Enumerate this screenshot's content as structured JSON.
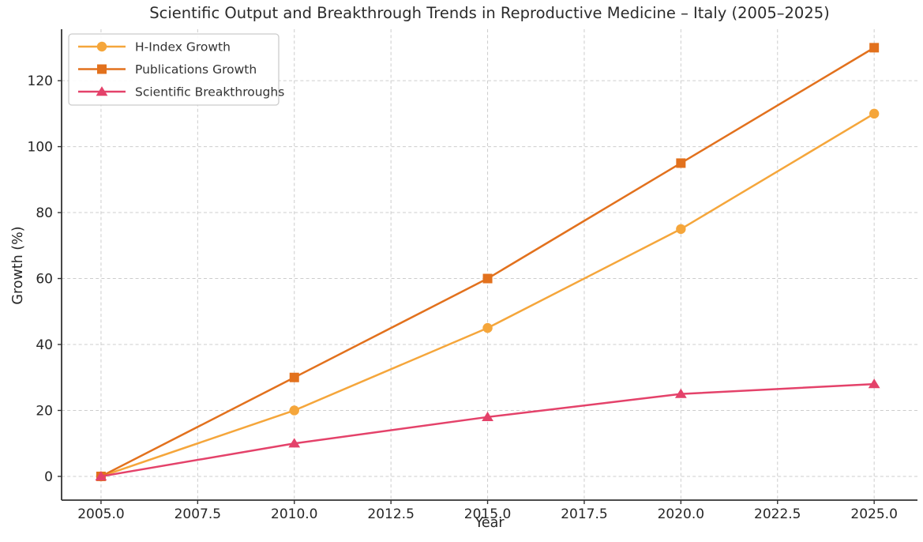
{
  "chart_data": {
    "type": "line",
    "title": "Scientific Output and Breakthrough Trends in Reproductive Medicine – Italy (2005–2025)",
    "xlabel": "Year",
    "ylabel": "Growth (%)",
    "x": [
      2005,
      2010,
      2015,
      2020,
      2025
    ],
    "series": [
      {
        "name": "H-Index Growth",
        "values": [
          0,
          20,
          45,
          75,
          110
        ],
        "color": "#F5A63B",
        "marker": "circle"
      },
      {
        "name": "Publications Growth",
        "values": [
          0,
          30,
          60,
          95,
          130
        ],
        "color": "#E2711D",
        "marker": "square"
      },
      {
        "name": "Scientific Breakthroughs",
        "values": [
          0,
          10,
          18,
          25,
          28
        ],
        "color": "#E4426A",
        "marker": "triangle"
      }
    ],
    "xticks": [
      2005.0,
      2007.5,
      2010.0,
      2012.5,
      2015.0,
      2017.5,
      2020.0,
      2022.5,
      2025.0
    ],
    "xtick_labels": [
      "2005.0",
      "2007.5",
      "2010.0",
      "2012.5",
      "2015.0",
      "2017.5",
      "2020.0",
      "2022.5",
      "2025.0"
    ],
    "yticks": [
      0,
      20,
      40,
      60,
      80,
      100,
      120
    ],
    "ytick_labels": [
      "0",
      "20",
      "40",
      "60",
      "80",
      "100",
      "120"
    ],
    "xlim": [
      2003.98,
      2026.12
    ],
    "ylim": [
      -7.2,
      135.6
    ],
    "grid": true,
    "grid_style": "dashed",
    "grid_color": "#cdcdcd",
    "spine_color": "#333333",
    "text_color": "#262626",
    "legend_position": "upper-left",
    "background": "#ffffff"
  }
}
